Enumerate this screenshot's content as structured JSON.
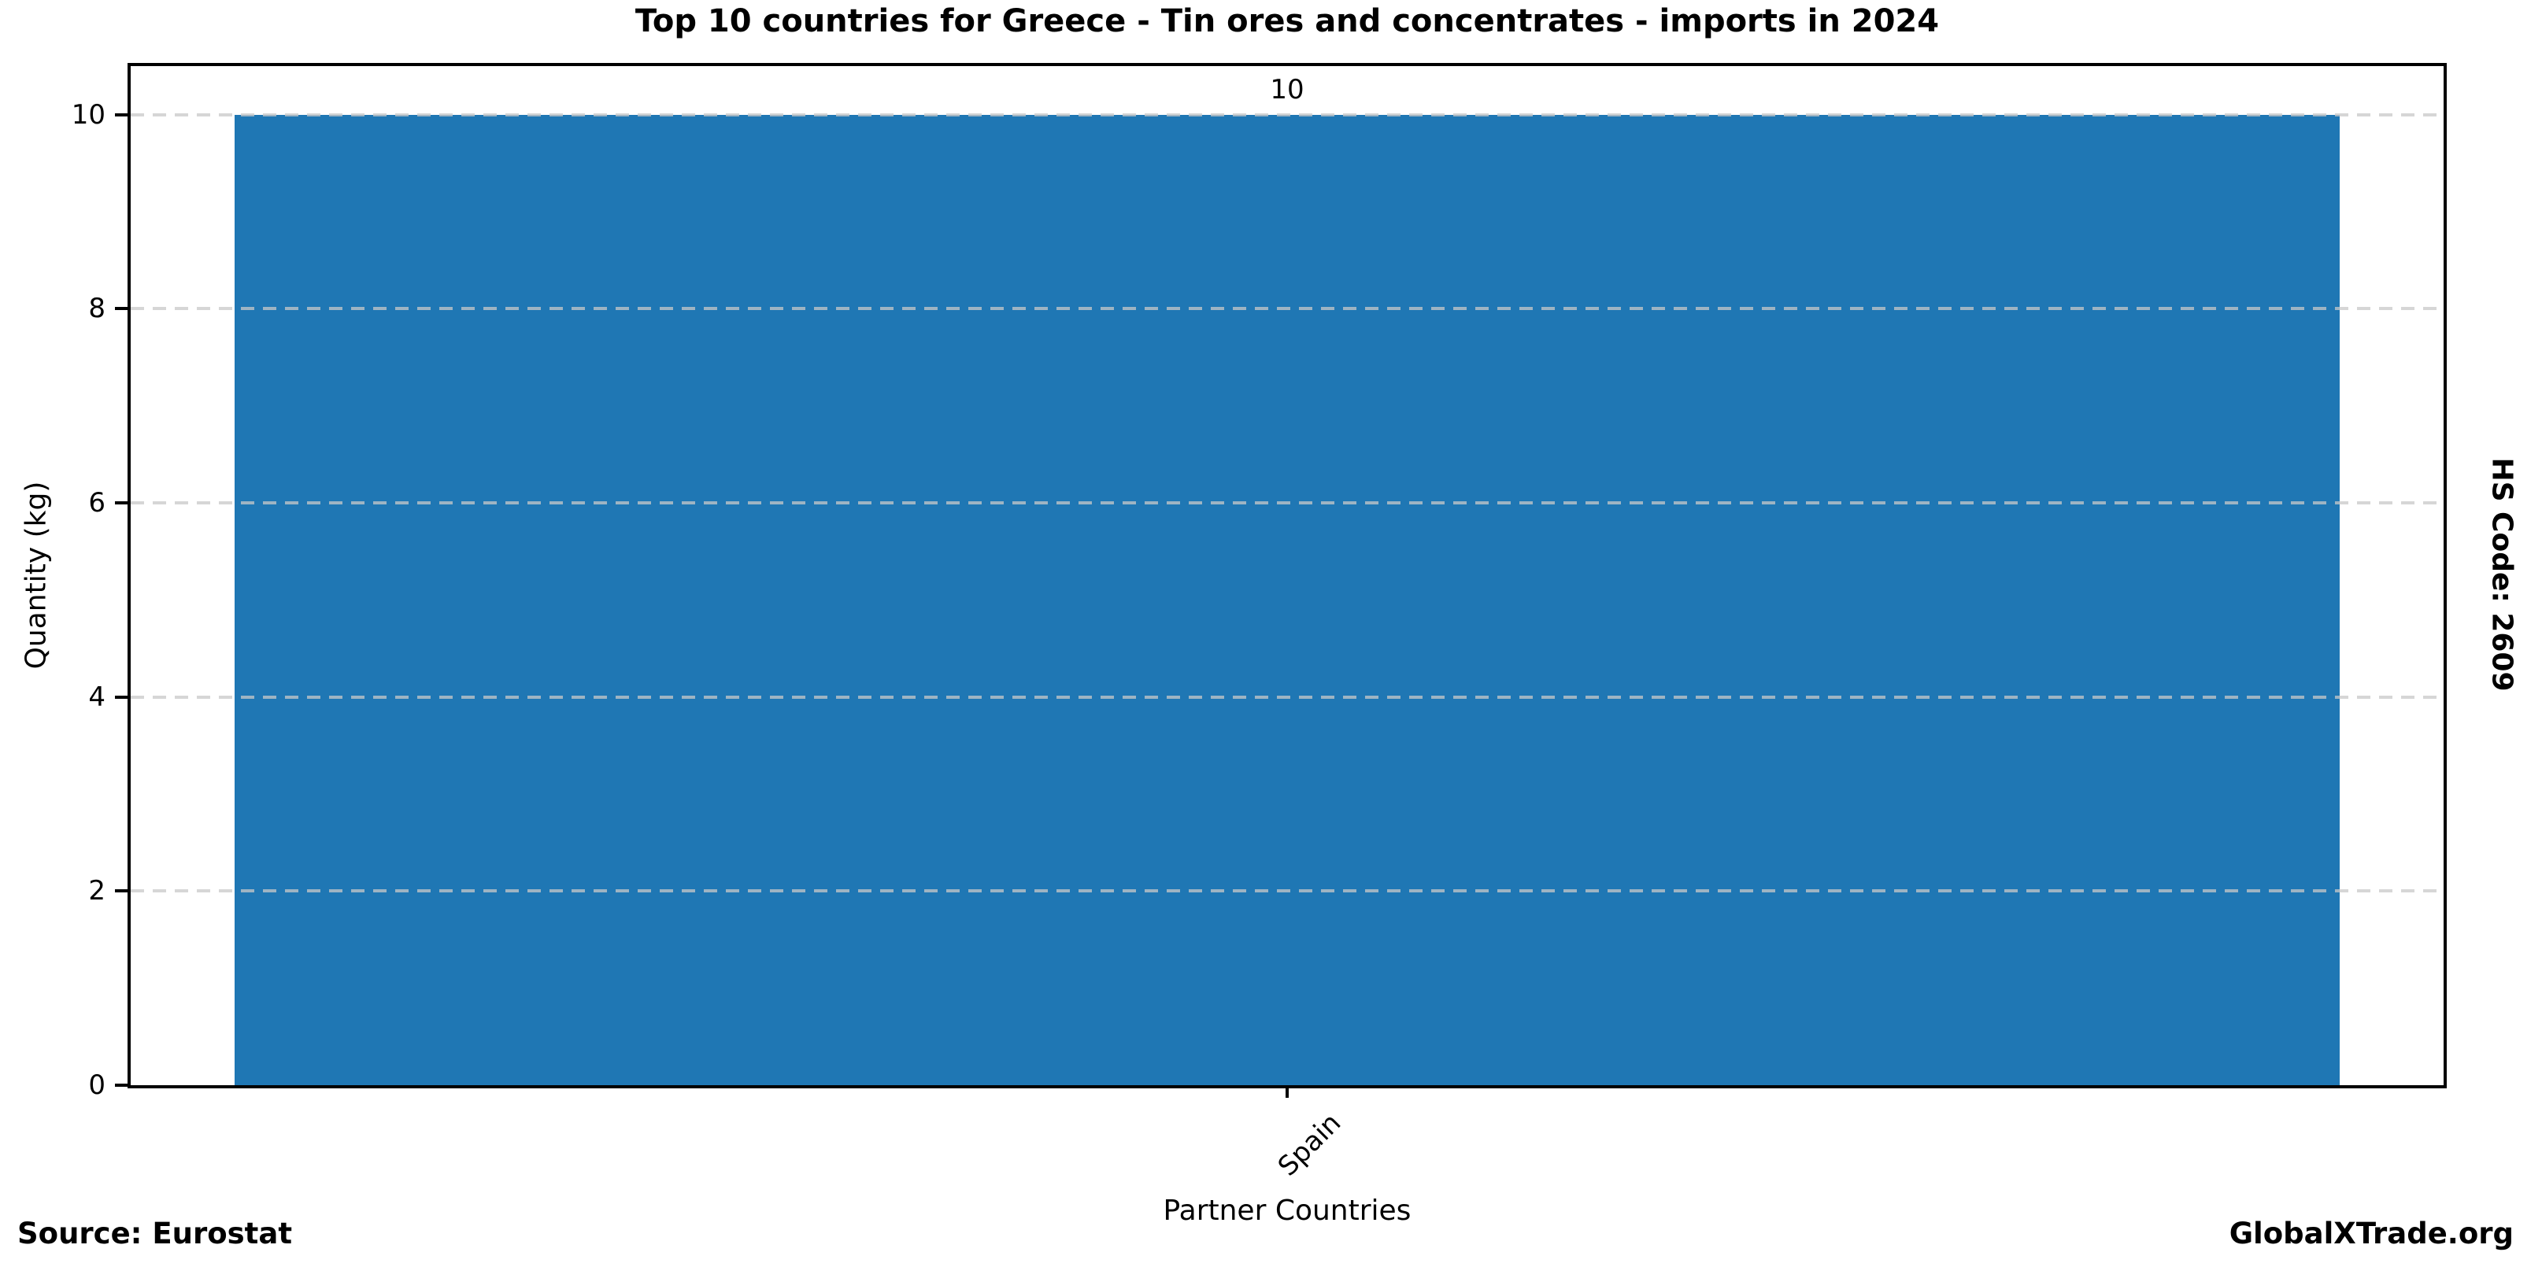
{
  "chart_data": {
    "type": "bar",
    "title": "Top 10 countries for Greece - Tin ores and concentrates - imports in 2024",
    "categories": [
      "Spain"
    ],
    "values": [
      10
    ],
    "bar_labels": [
      "10"
    ],
    "xlabel": "Partner Countries",
    "ylabel": "Quantity (kg)",
    "ylim": [
      0,
      10.5
    ],
    "yticks": [
      0,
      2,
      4,
      6,
      8,
      10
    ],
    "grid": "horizontal dashed",
    "legend_position": "none",
    "bar_color": "#1f77b4",
    "gridline_color": "#c8c8c8",
    "bar_width_fraction": 0.91
  },
  "side_label": "HS Code: 2609",
  "footer": {
    "source": "Source: Eurostat",
    "brand": "GlobalXTrade.org"
  }
}
